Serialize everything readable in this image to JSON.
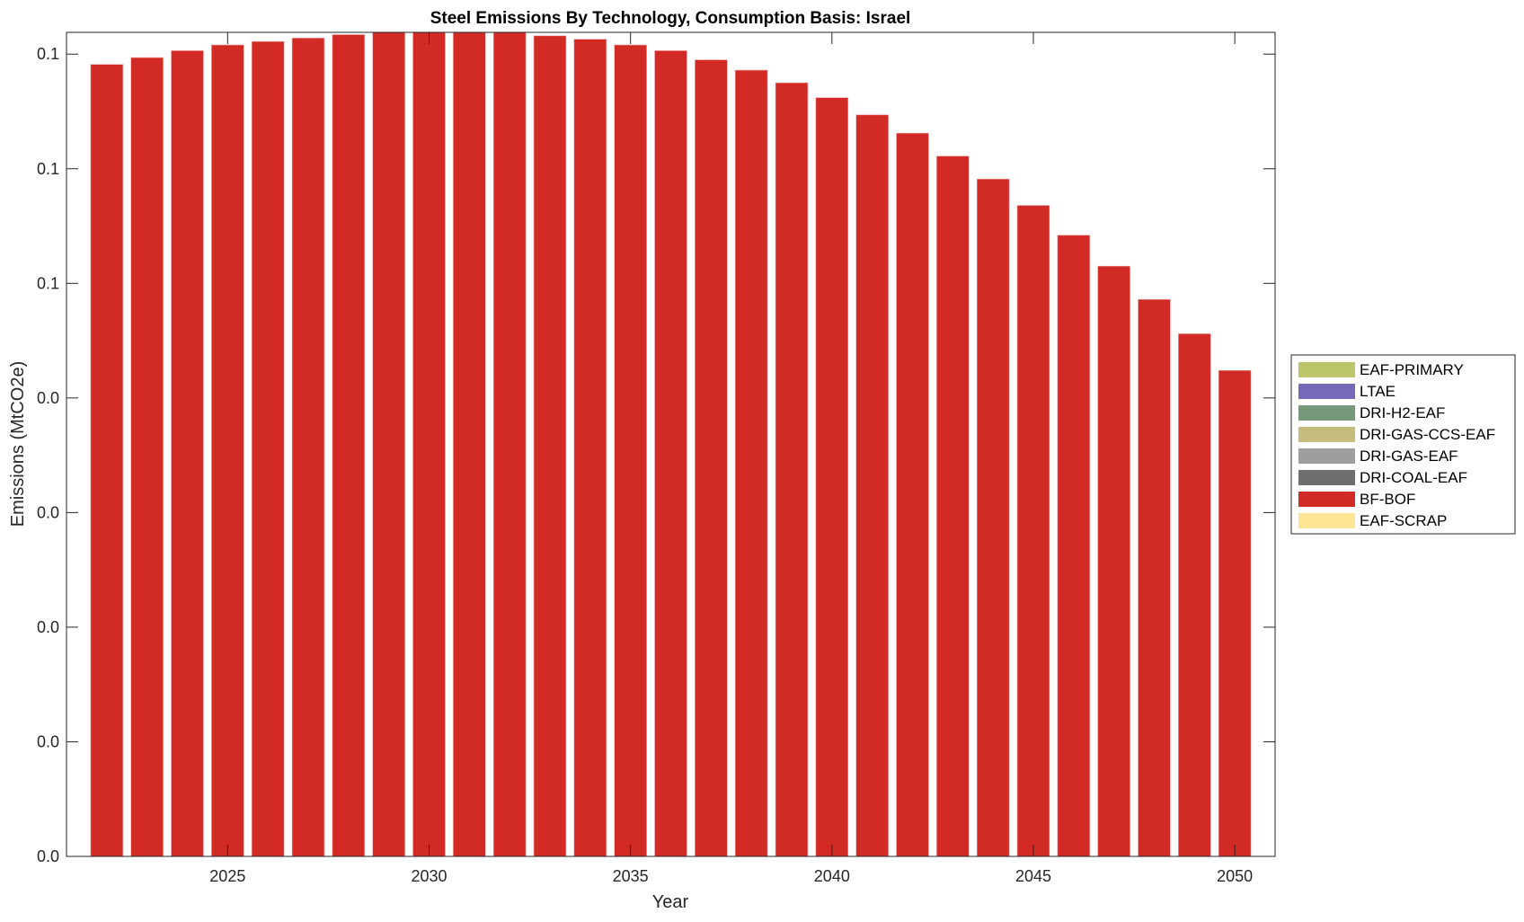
{
  "chart_data": {
    "type": "bar",
    "stacked": true,
    "title": "Steel Emissions By Technology, Consumption Basis: Israel",
    "xlabel": "Year",
    "ylabel": "Emissions (MtCO2e)",
    "xlim": [
      2021,
      2051
    ],
    "ylim": [
      0,
      0.0719
    ],
    "xticks": [
      2025,
      2030,
      2035,
      2040,
      2045,
      2050
    ],
    "yticks": [
      0,
      0.01,
      0.02,
      0.03,
      0.04,
      0.05,
      0.06,
      0.07
    ],
    "ytick_decimals": 1,
    "grid": false,
    "legend_placement": "right",
    "x": [
      2022,
      2023,
      2024,
      2025,
      2026,
      2027,
      2028,
      2029,
      2030,
      2031,
      2032,
      2033,
      2034,
      2035,
      2036,
      2037,
      2038,
      2039,
      2040,
      2041,
      2042,
      2043,
      2044,
      2045,
      2046,
      2047,
      2048,
      2049,
      2050
    ],
    "series": [
      {
        "name": "EAF-PRIMARY",
        "color": "#bdc56a",
        "values": [
          0,
          0,
          0,
          0,
          0,
          0,
          0,
          0,
          0,
          0,
          0,
          0,
          0,
          0,
          0,
          0,
          0,
          0,
          0,
          0,
          0,
          0,
          0,
          0,
          0,
          0,
          0,
          0,
          0
        ]
      },
      {
        "name": "LTAE",
        "color": "#746ab8",
        "values": [
          0,
          0,
          0,
          0,
          0,
          0,
          0,
          0,
          0,
          0,
          0,
          0,
          0,
          0,
          0,
          0,
          0,
          0,
          0,
          0,
          0,
          0,
          0,
          0,
          0,
          0,
          0,
          0,
          0
        ]
      },
      {
        "name": "DRI-H2-EAF",
        "color": "#76997b",
        "values": [
          0,
          0,
          0,
          0,
          0,
          0,
          0,
          0,
          0,
          0,
          0,
          0,
          0,
          0,
          0,
          0,
          0,
          0,
          0,
          0,
          0,
          0,
          0,
          0,
          0,
          0,
          0,
          0,
          0
        ]
      },
      {
        "name": "DRI-GAS-CCS-EAF",
        "color": "#c5bd7c",
        "values": [
          0,
          0,
          0,
          0,
          0,
          0,
          0,
          0,
          0,
          0,
          0,
          0,
          0,
          0,
          0,
          0,
          0,
          0,
          0,
          0,
          0,
          0,
          0,
          0,
          0,
          0,
          0,
          0,
          0
        ]
      },
      {
        "name": "DRI-GAS-EAF",
        "color": "#9e9e9e",
        "values": [
          0,
          0,
          0,
          0,
          0,
          0,
          0,
          0,
          0,
          0,
          0,
          0,
          0,
          0,
          0,
          0,
          0,
          0,
          0,
          0,
          0,
          0,
          0,
          0,
          0,
          0,
          0,
          0,
          0
        ]
      },
      {
        "name": "DRI-COAL-EAF",
        "color": "#6e6e6e",
        "values": [
          0,
          0,
          0,
          0,
          0,
          0,
          0,
          0,
          0,
          0,
          0,
          0,
          0,
          0,
          0,
          0,
          0,
          0,
          0,
          0,
          0,
          0,
          0,
          0,
          0,
          0,
          0,
          0,
          0
        ]
      },
      {
        "name": "BF-BOF",
        "color": "#d22b25",
        "values": [
          0.0691,
          0.0697,
          0.0703,
          0.0708,
          0.0711,
          0.0714,
          0.0717,
          0.0719,
          0.0719,
          0.0719,
          0.0719,
          0.0716,
          0.0713,
          0.0708,
          0.0703,
          0.0695,
          0.0686,
          0.0675,
          0.0662,
          0.0647,
          0.0631,
          0.0611,
          0.0591,
          0.0568,
          0.0542,
          0.0515,
          0.0486,
          0.0456,
          0.0424
        ]
      },
      {
        "name": "EAF-SCRAP",
        "color": "#fde594",
        "values": [
          0,
          0,
          0,
          0,
          0,
          0,
          0,
          0,
          0,
          0,
          0,
          0,
          0,
          0,
          0,
          0,
          0,
          0,
          0,
          0,
          0,
          0,
          0,
          0,
          0,
          0,
          0,
          0,
          0
        ]
      }
    ]
  }
}
